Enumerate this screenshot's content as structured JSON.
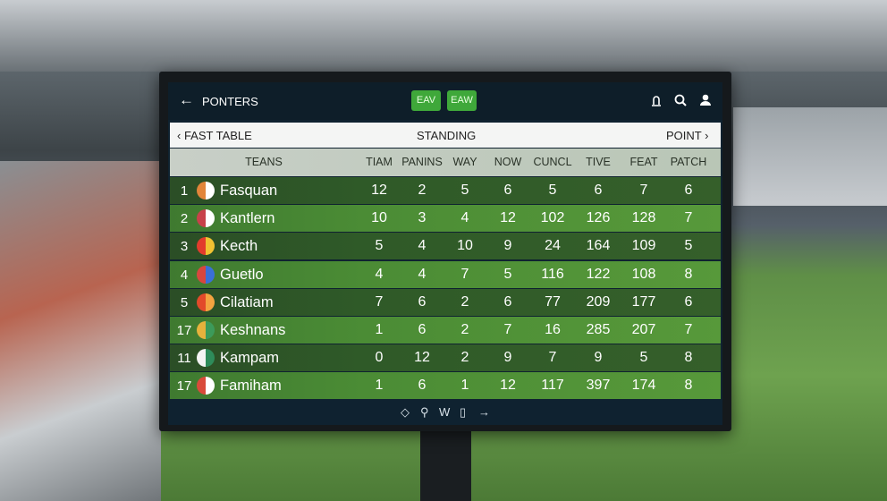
{
  "header": {
    "title": "PONTERS",
    "buttons": [
      "EAV",
      "EAW"
    ]
  },
  "subheader": {
    "left": "FAST TABLE",
    "center": "STANDING",
    "right": "POINT"
  },
  "table": {
    "columns": [
      "TEANS",
      "TIAM",
      "PANINS",
      "WAY",
      "NOW",
      "CUNCL",
      "TIVE",
      "FEAT",
      "PATCH"
    ],
    "rows": [
      [
        1,
        "Fasquan",
        12,
        2,
        5,
        6,
        5,
        6,
        7,
        6
      ],
      [
        2,
        "Kantlern",
        10,
        3,
        4,
        12,
        102,
        126,
        128,
        7
      ],
      [
        3,
        "Kecth",
        5,
        4,
        10,
        9,
        24,
        164,
        109,
        5
      ],
      [
        4,
        "Guetlo",
        4,
        4,
        7,
        5,
        116,
        122,
        108,
        8
      ],
      [
        5,
        "Cilatiam",
        7,
        6,
        2,
        6,
        77,
        209,
        177,
        6
      ],
      [
        17,
        "Keshnans",
        1,
        6,
        2,
        7,
        16,
        285,
        207,
        7
      ],
      [
        11,
        "Kampam",
        0,
        12,
        2,
        9,
        7,
        9,
        5,
        8
      ],
      [
        17,
        "Famiham",
        1,
        6,
        1,
        12,
        117,
        397,
        174,
        8
      ]
    ]
  },
  "footer": {
    "label": "W"
  }
}
